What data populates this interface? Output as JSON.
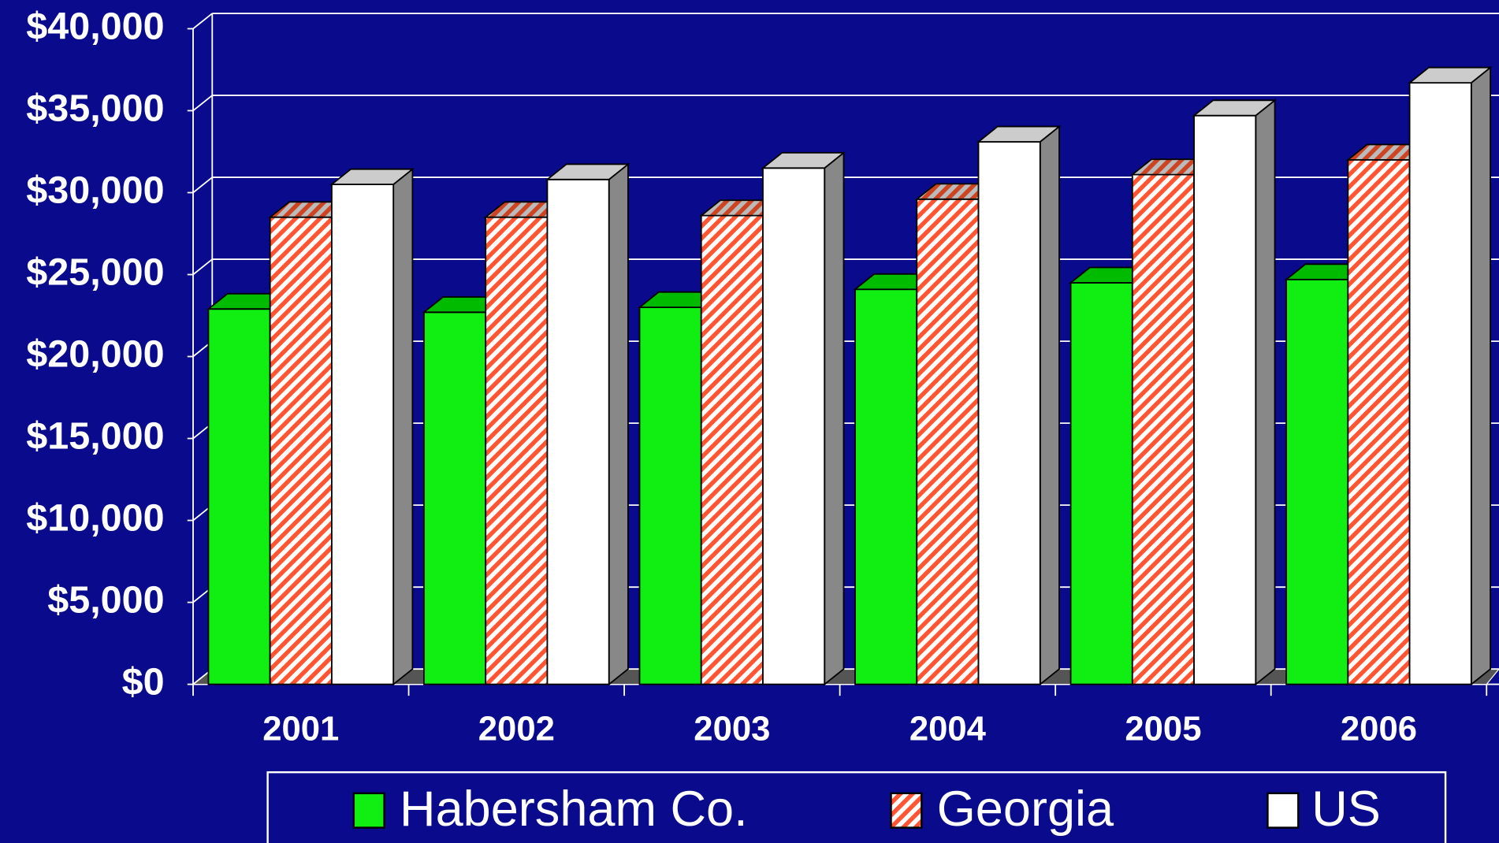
{
  "chart_data": {
    "type": "bar3d",
    "categories": [
      "2001",
      "2002",
      "2003",
      "2004",
      "2005",
      "2006"
    ],
    "series": [
      {
        "name": "Habersham Co.",
        "color": "#11ee11",
        "values": [
          22900,
          22700,
          23000,
          24100,
          24500,
          24700
        ]
      },
      {
        "name": "Georgia",
        "color": "#ff5533",
        "hatch": true,
        "values": [
          28500,
          28500,
          28600,
          29600,
          31100,
          32000
        ]
      },
      {
        "name": "US",
        "color": "#ffffff",
        "values": [
          30500,
          30800,
          31500,
          33100,
          34700,
          36700
        ]
      }
    ],
    "ylim": [
      0,
      40000
    ],
    "yticks": [
      {
        "value": 0,
        "label": "$0"
      },
      {
        "value": 5000,
        "label": "$5,000"
      },
      {
        "value": 10000,
        "label": "$10,000"
      },
      {
        "value": 15000,
        "label": "$15,000"
      },
      {
        "value": 20000,
        "label": "$20,000"
      },
      {
        "value": 25000,
        "label": "$25,000"
      },
      {
        "value": 30000,
        "label": "$30,000"
      },
      {
        "value": 35000,
        "label": "$35,000"
      },
      {
        "value": 40000,
        "label": "$40,000"
      }
    ],
    "grid": true,
    "legend": "bottom"
  }
}
